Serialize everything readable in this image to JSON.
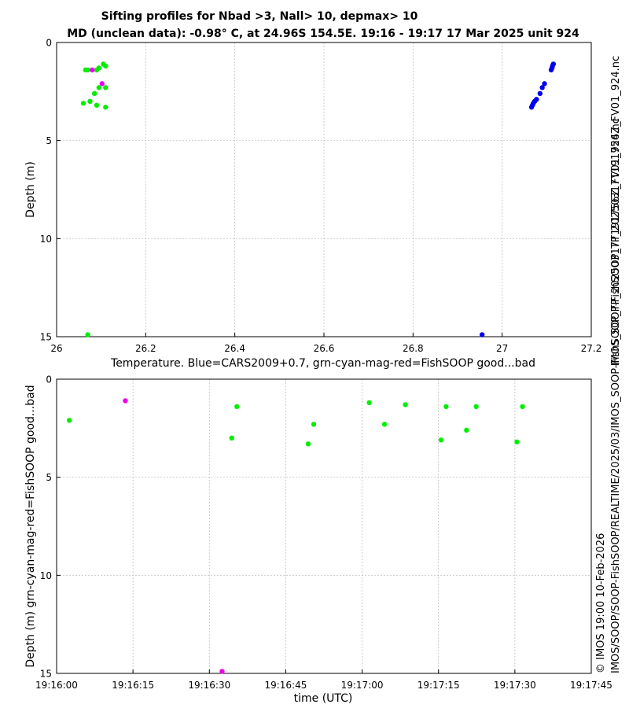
{
  "titles": {
    "line1": "Sifting profiles for Nbad >3, Nall> 10, depmax> 10",
    "line2": "MD (unclean data): -0.98° C, at 24.96S 154.5E. 19:16 - 19:17 17 Mar 2025 unit 924"
  },
  "side_text": {
    "filename": "IMOS_SOOP-FishSOOP_TP_20250317T191756Z_FV01_924.nc",
    "stamp_line1": "© IMOS 19:00 10-Feb-2026",
    "stamp_line2": "IMOS/SOOP/SOOP-FishSOOP/REALTIME/2025/03/IMOS_SOOP-FishSOOP_TP_20250317T191756Z_FV01_924.nc"
  },
  "colors": {
    "good": "#00ee00",
    "mag": "#ee00ee",
    "cars": "#0000ee"
  },
  "chart_data": [
    {
      "type": "scatter",
      "xlabel": "Temperature. Blue=CARS2009+0.7, grn-cyan-mag-red=FishSOOP good...bad",
      "ylabel": "Depth (m)",
      "xlim": [
        26,
        27.2
      ],
      "ylim": [
        15,
        0
      ],
      "y_inverted": true,
      "grid": true,
      "x_ticks": [
        "26",
        "26.2",
        "26.4",
        "26.6",
        "26.8",
        "27",
        "27.2"
      ],
      "y_ticks": [
        "0",
        "5",
        "10",
        "15"
      ],
      "series": [
        {
          "color_key": "good",
          "points": [
            [
              26.065,
              1.4
            ],
            [
              26.07,
              1.4
            ],
            [
              26.09,
              1.4
            ],
            [
              26.095,
              1.3
            ],
            [
              26.105,
              1.1
            ],
            [
              26.11,
              1.2
            ],
            [
              26.095,
              2.3
            ],
            [
              26.11,
              2.3
            ],
            [
              26.085,
              2.6
            ],
            [
              26.075,
              3.0
            ],
            [
              26.06,
              3.1
            ],
            [
              26.09,
              3.2
            ],
            [
              26.11,
              3.3
            ],
            [
              26.07,
              14.9
            ]
          ]
        },
        {
          "color_key": "mag",
          "points": [
            [
              26.08,
              1.4
            ],
            [
              26.102,
              2.1
            ]
          ]
        },
        {
          "color_key": "cars",
          "points": [
            [
              27.115,
              1.1
            ],
            [
              27.113,
              1.2
            ],
            [
              27.112,
              1.3
            ],
            [
              27.11,
              1.4
            ],
            [
              27.095,
              2.1
            ],
            [
              27.09,
              2.3
            ],
            [
              27.085,
              2.6
            ],
            [
              27.077,
              2.9
            ],
            [
              27.073,
              3.0
            ],
            [
              27.07,
              3.1
            ],
            [
              27.068,
              3.2
            ],
            [
              27.066,
              3.3
            ],
            [
              26.955,
              14.9
            ]
          ]
        }
      ]
    },
    {
      "type": "scatter",
      "xlabel": "time (UTC)",
      "ylabel": "Depth (m) grn-cyan-mag-red=FishSOOP good...bad",
      "xlim": [
        0,
        105
      ],
      "ylim": [
        15,
        0
      ],
      "y_inverted": true,
      "grid": true,
      "x_ticks": [
        "19:16:00",
        "19:16:15",
        "19:16:30",
        "19:16:45",
        "19:17:00",
        "19:17:15",
        "19:17:30",
        "19:17:45"
      ],
      "y_ticks": [
        "0",
        "5",
        "10",
        "15"
      ],
      "series": [
        {
          "color_key": "good",
          "points": [
            [
              2.5,
              2.1
            ],
            [
              34.4,
              3.0
            ],
            [
              35.4,
              1.4
            ],
            [
              49.4,
              3.3
            ],
            [
              50.5,
              2.3
            ],
            [
              61.4,
              1.2
            ],
            [
              64.4,
              2.3
            ],
            [
              68.5,
              1.3
            ],
            [
              75.5,
              3.1
            ],
            [
              76.5,
              1.4
            ],
            [
              80.5,
              2.6
            ],
            [
              82.4,
              1.4
            ],
            [
              90.4,
              3.2
            ],
            [
              91.5,
              1.4
            ]
          ]
        },
        {
          "color_key": "mag",
          "points": [
            [
              13.5,
              1.1
            ],
            [
              32.5,
              14.9
            ]
          ]
        }
      ]
    }
  ]
}
